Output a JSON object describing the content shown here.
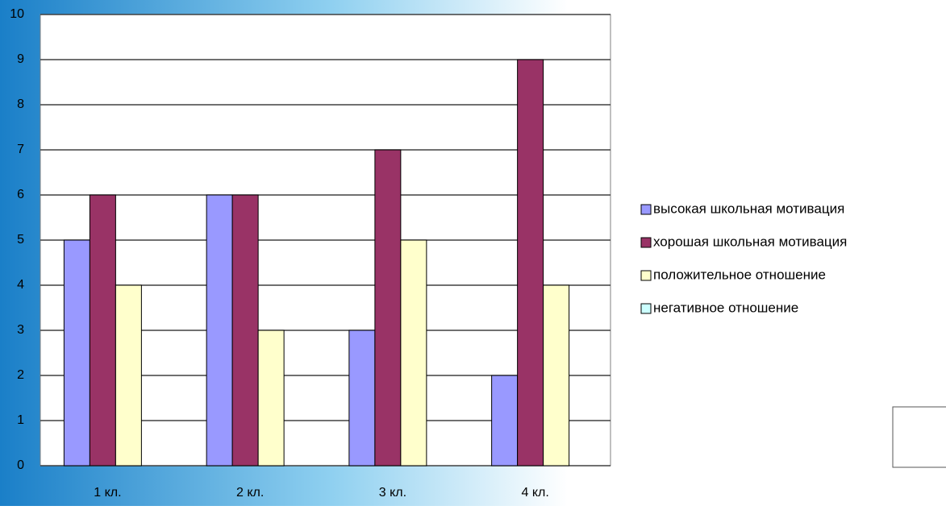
{
  "chart_data": {
    "type": "bar",
    "categories": [
      "1 кл.",
      "2 кл.",
      "3 кл.",
      "4 кл."
    ],
    "series": [
      {
        "name": "высокая школьная мотивация",
        "color": "#9999ff",
        "values": [
          5,
          6,
          3,
          2
        ]
      },
      {
        "name": "хорошая школьная мотивация",
        "color": "#993366",
        "values": [
          6,
          6,
          7,
          9
        ]
      },
      {
        "name": "положительное отношение",
        "color": "#ffffcc",
        "values": [
          4,
          3,
          5,
          4
        ]
      },
      {
        "name": "негативное отношение",
        "color": "#ccffff",
        "values": [
          0,
          0,
          0,
          0
        ]
      }
    ],
    "ylim": [
      0,
      10
    ],
    "yticks": [
      0,
      1,
      2,
      3,
      4,
      5,
      6,
      7,
      8,
      9,
      10
    ],
    "grid": true
  }
}
